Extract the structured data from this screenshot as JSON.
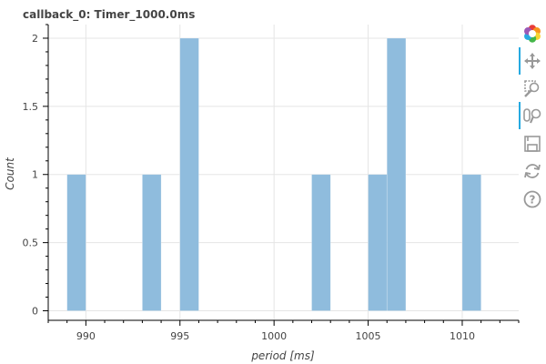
{
  "chart_data": {
    "type": "bar",
    "title": "callback_0: Timer_1000.0ms",
    "xlabel": "period [ms]",
    "ylabel": "Count",
    "xlim": [
      988,
      1013
    ],
    "ylim": [
      -0.07,
      2.1
    ],
    "x_ticks": [
      990,
      995,
      1000,
      1005,
      1010
    ],
    "x_tick_labels": [
      "990",
      "995",
      "1000",
      "1005",
      "1010"
    ],
    "y_ticks": [
      0,
      0.5,
      1,
      1.5,
      2
    ],
    "y_tick_labels": [
      "0",
      "0.5",
      "1",
      "1.5",
      "2"
    ],
    "bins": [
      {
        "left": 989.0,
        "right": 990.0,
        "count": 1
      },
      {
        "left": 993.0,
        "right": 994.0,
        "count": 1
      },
      {
        "left": 995.0,
        "right": 996.0,
        "count": 2
      },
      {
        "left": 1002.0,
        "right": 1003.0,
        "count": 1
      },
      {
        "left": 1005.0,
        "right": 1006.0,
        "count": 1
      },
      {
        "left": 1006.0,
        "right": 1007.0,
        "count": 2
      },
      {
        "left": 1010.0,
        "right": 1011.0,
        "count": 1
      }
    ],
    "bar_color": "#8fbcdd",
    "grid": true,
    "legend": "none"
  },
  "toolbar": {
    "items": [
      {
        "name": "bokeh-logo-icon",
        "active": false
      },
      {
        "name": "pan-icon",
        "active": true
      },
      {
        "name": "box-zoom-icon",
        "active": false
      },
      {
        "name": "wheel-zoom-icon",
        "active": true
      },
      {
        "name": "save-icon",
        "active": false
      },
      {
        "name": "reset-icon",
        "active": false
      },
      {
        "name": "help-icon",
        "active": false
      }
    ],
    "active_color": "#26aae1",
    "icon_color": "#999999"
  }
}
